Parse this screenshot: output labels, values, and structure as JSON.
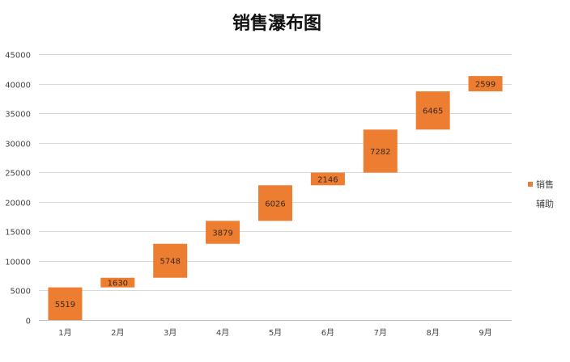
{
  "chart_data": {
    "type": "bar",
    "title": "销售瀑布图",
    "categories": [
      "1月",
      "2月",
      "3月",
      "4月",
      "5月",
      "6月",
      "7月",
      "8月",
      "9月"
    ],
    "series": [
      {
        "name": "销售",
        "values": [
          5519,
          1630,
          5748,
          3879,
          6026,
          2146,
          7282,
          6465,
          2599
        ],
        "color": "#ED7D31"
      },
      {
        "name": "辅助",
        "values": [
          0,
          5519,
          7149,
          12897,
          16776,
          22802,
          24948,
          32230,
          38695
        ],
        "color": "transparent"
      }
    ],
    "stacked": true,
    "data_labels": [
      "5519",
      "1630",
      "5748",
      "3879",
      "6026",
      "2146",
      "7282",
      "6465",
      "2599"
    ],
    "ylim": [
      0,
      45000
    ],
    "yticks": [
      0,
      5000,
      10000,
      15000,
      20000,
      25000,
      30000,
      35000,
      40000,
      45000
    ],
    "ytick_labels": [
      "0",
      "5000",
      "10000",
      "15000",
      "20000",
      "25000",
      "30000",
      "35000",
      "40000",
      "45000"
    ],
    "grid": true,
    "legend_position": "right",
    "legend": [
      "销售",
      "辅助"
    ]
  }
}
